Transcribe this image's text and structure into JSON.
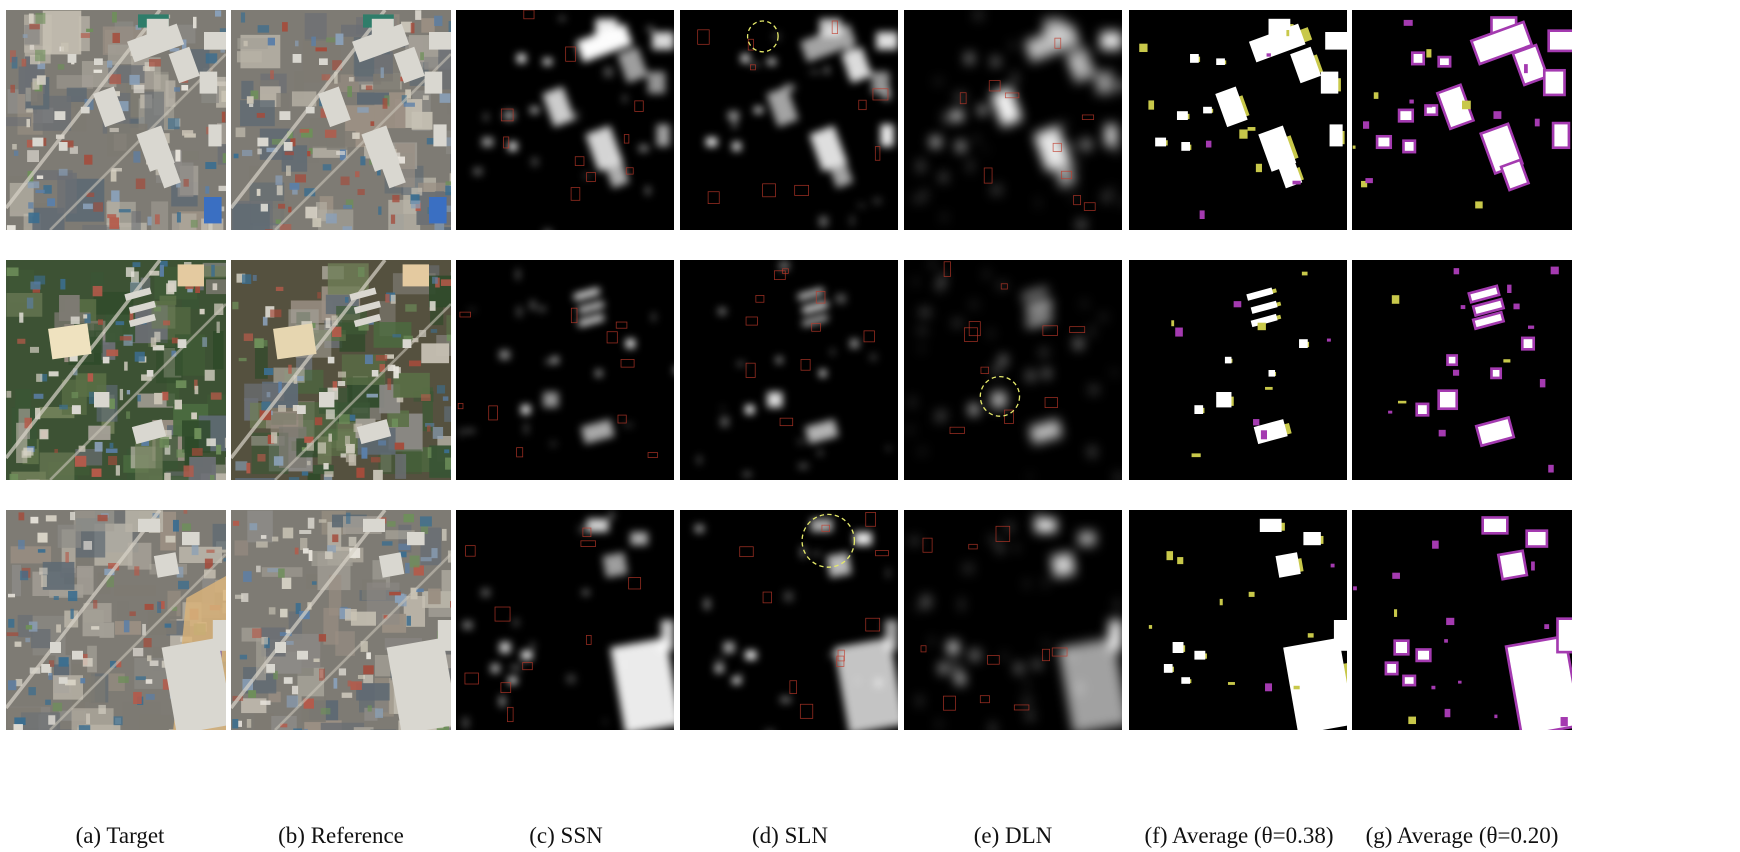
{
  "figure": {
    "captions": [
      {
        "label": "(a)",
        "text": "Target"
      },
      {
        "label": "(b)",
        "text": "Reference"
      },
      {
        "label": "(c)",
        "text": "SSN"
      },
      {
        "label": "(d)",
        "text": "SLN"
      },
      {
        "label": "(e)",
        "text": "DLN"
      },
      {
        "label": "(f)",
        "text": "Average (θ=0.38)"
      },
      {
        "label": "(g)",
        "text": "Average (θ=0.20)"
      }
    ],
    "rows": 3,
    "panel_kinds": [
      "aerial-target",
      "aerial-reference",
      "heatmap",
      "heatmap",
      "heatmap",
      "change-map",
      "change-map"
    ],
    "colors": {
      "background": "#ffffff",
      "map_black": "#000000",
      "change_white": "#ffffff",
      "false_positive_magenta": "#a43ab0",
      "false_negative_olive": "#c8c84a",
      "outline_red": "#c0392b",
      "highlight_dashed_yellow": "#e6ea6a",
      "caption_text": "#111111"
    }
  }
}
